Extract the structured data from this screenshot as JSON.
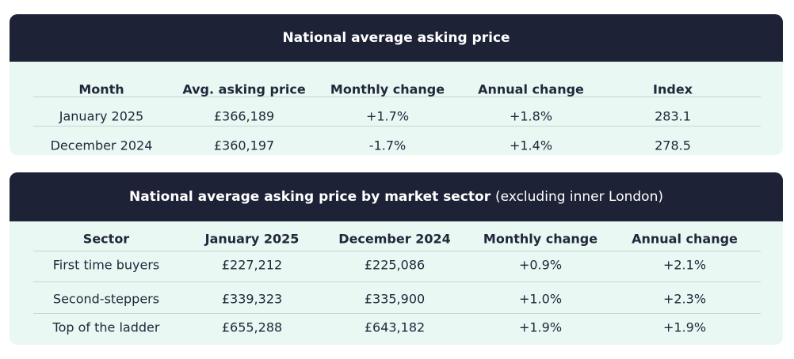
{
  "tables": [
    {
      "title": "National average asking price",
      "columns": [
        "Month",
        "Avg. asking price",
        "Monthly change",
        "Annual change",
        "Index"
      ],
      "rows": [
        [
          "January 2025",
          "£366,189",
          "+1.7%",
          "+1.8%",
          "283.1"
        ],
        [
          "December 2024",
          "£360,197",
          "-1.7%",
          "+1.4%",
          "278.5"
        ]
      ]
    },
    {
      "title": "National average asking price by market sector",
      "title_note": "(excluding inner London)",
      "columns": [
        "Sector",
        "January 2025",
        "December 2024",
        "Monthly change",
        "Annual change"
      ],
      "rows": [
        [
          "First time buyers",
          "£227,212",
          "£225,086",
          "+0.9%",
          "+2.1%"
        ],
        [
          "Second-steppers",
          "£339,323",
          "£335,900",
          "+1.0%",
          "+2.3%"
        ],
        [
          "Top of the ladder",
          "£655,288",
          "£643,182",
          "+1.9%",
          "+1.9%"
        ]
      ]
    }
  ]
}
